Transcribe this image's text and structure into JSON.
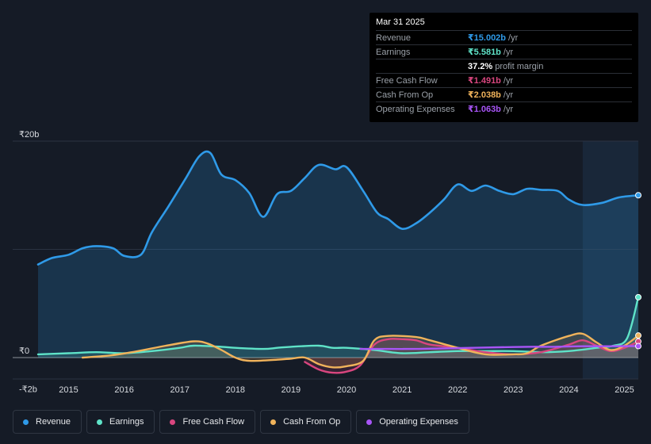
{
  "tooltip": {
    "date": "Mar 31 2025",
    "rows": [
      {
        "label": "Revenue",
        "value": "₹15.002b",
        "unit": "/yr",
        "color": "#2f9ae8"
      },
      {
        "label": "Earnings",
        "value": "₹5.581b",
        "unit": "/yr",
        "color": "#5fe3c8"
      },
      {
        "label": "",
        "value": "37.2%",
        "unit": "profit margin",
        "color": "#ffffff"
      },
      {
        "label": "Free Cash Flow",
        "value": "₹1.491b",
        "unit": "/yr",
        "color": "#d9467f"
      },
      {
        "label": "Cash From Op",
        "value": "₹2.038b",
        "unit": "/yr",
        "color": "#f0b35b"
      },
      {
        "label": "Operating Expenses",
        "value": "₹1.063b",
        "unit": "/yr",
        "color": "#a855f7"
      }
    ]
  },
  "legend": [
    {
      "label": "Revenue",
      "color": "#2f9ae8"
    },
    {
      "label": "Earnings",
      "color": "#5fe3c8"
    },
    {
      "label": "Free Cash Flow",
      "color": "#d9467f"
    },
    {
      "label": "Cash From Op",
      "color": "#f0b35b"
    },
    {
      "label": "Operating Expenses",
      "color": "#a855f7"
    }
  ],
  "chart_data": {
    "type": "line",
    "title": "",
    "xlabel": "",
    "ylabel": "",
    "ylim": [
      -2,
      20
    ],
    "xlim": [
      2014.45,
      2025.25
    ],
    "y_ticks": [
      {
        "value": 20,
        "label": "₹20b"
      },
      {
        "value": 0,
        "label": "₹0"
      },
      {
        "value": -2,
        "label": "-₹2b"
      }
    ],
    "x_ticks": [
      {
        "value": 2015,
        "label": "2015"
      },
      {
        "value": 2016,
        "label": "2016"
      },
      {
        "value": 2017,
        "label": "2017"
      },
      {
        "value": 2018,
        "label": "2018"
      },
      {
        "value": 2019,
        "label": "2019"
      },
      {
        "value": 2020,
        "label": "2020"
      },
      {
        "value": 2021,
        "label": "2021"
      },
      {
        "value": 2022,
        "label": "2022"
      },
      {
        "value": 2023,
        "label": "2023"
      },
      {
        "value": 2024,
        "label": "2024"
      },
      {
        "value": 2025,
        "label": "2025"
      }
    ],
    "grid_values": [
      20,
      10,
      0
    ],
    "highlight_range": [
      2024.25,
      2025.25
    ],
    "series": [
      {
        "name": "Revenue",
        "color": "#2f9ae8",
        "fill": true,
        "points": [
          [
            2014.45,
            8.6
          ],
          [
            2014.7,
            9.2
          ],
          [
            2015.0,
            9.5
          ],
          [
            2015.25,
            10.1
          ],
          [
            2015.5,
            10.3
          ],
          [
            2015.8,
            10.1
          ],
          [
            2016.0,
            9.4
          ],
          [
            2016.3,
            9.5
          ],
          [
            2016.5,
            11.6
          ],
          [
            2016.8,
            14.0
          ],
          [
            2017.1,
            16.5
          ],
          [
            2017.35,
            18.6
          ],
          [
            2017.55,
            18.9
          ],
          [
            2017.75,
            16.9
          ],
          [
            2018.0,
            16.4
          ],
          [
            2018.25,
            15.2
          ],
          [
            2018.5,
            13.0
          ],
          [
            2018.75,
            15.1
          ],
          [
            2019.0,
            15.4
          ],
          [
            2019.25,
            16.6
          ],
          [
            2019.5,
            17.8
          ],
          [
            2019.8,
            17.4
          ],
          [
            2020.0,
            17.6
          ],
          [
            2020.3,
            15.4
          ],
          [
            2020.55,
            13.4
          ],
          [
            2020.75,
            12.8
          ],
          [
            2021.0,
            11.9
          ],
          [
            2021.25,
            12.4
          ],
          [
            2021.5,
            13.4
          ],
          [
            2021.75,
            14.6
          ],
          [
            2022.0,
            16.0
          ],
          [
            2022.25,
            15.4
          ],
          [
            2022.5,
            15.9
          ],
          [
            2022.75,
            15.4
          ],
          [
            2023.0,
            15.1
          ],
          [
            2023.25,
            15.6
          ],
          [
            2023.5,
            15.5
          ],
          [
            2023.8,
            15.4
          ],
          [
            2024.0,
            14.6
          ],
          [
            2024.25,
            14.1
          ],
          [
            2024.6,
            14.3
          ],
          [
            2024.9,
            14.8
          ],
          [
            2025.25,
            15.0
          ]
        ]
      },
      {
        "name": "Earnings",
        "color": "#5fe3c8",
        "fill": true,
        "points": [
          [
            2014.45,
            0.3
          ],
          [
            2015.0,
            0.4
          ],
          [
            2015.5,
            0.5
          ],
          [
            2016.0,
            0.4
          ],
          [
            2016.5,
            0.6
          ],
          [
            2017.0,
            0.9
          ],
          [
            2017.25,
            1.1
          ],
          [
            2017.75,
            1.0
          ],
          [
            2018.0,
            0.9
          ],
          [
            2018.5,
            0.8
          ],
          [
            2018.75,
            0.9
          ],
          [
            2019.0,
            1.0
          ],
          [
            2019.5,
            1.1
          ],
          [
            2019.75,
            0.9
          ],
          [
            2020.0,
            0.9
          ],
          [
            2020.5,
            0.7
          ],
          [
            2021.0,
            0.4
          ],
          [
            2021.5,
            0.5
          ],
          [
            2022.0,
            0.6
          ],
          [
            2022.5,
            0.6
          ],
          [
            2023.0,
            0.6
          ],
          [
            2023.5,
            0.5
          ],
          [
            2024.0,
            0.6
          ],
          [
            2024.5,
            0.9
          ],
          [
            2024.8,
            1.1
          ],
          [
            2025.05,
            1.8
          ],
          [
            2025.25,
            5.58
          ]
        ]
      },
      {
        "name": "Free Cash Flow",
        "color": "#d9467f",
        "fill": true,
        "points": [
          [
            2019.25,
            -0.4
          ],
          [
            2019.5,
            -1.1
          ],
          [
            2019.75,
            -1.4
          ],
          [
            2020.0,
            -1.3
          ],
          [
            2020.25,
            -0.7
          ],
          [
            2020.5,
            1.2
          ],
          [
            2020.75,
            1.7
          ],
          [
            2021.0,
            1.7
          ],
          [
            2021.25,
            1.6
          ],
          [
            2021.5,
            1.2
          ],
          [
            2022.0,
            0.9
          ],
          [
            2022.5,
            0.5
          ],
          [
            2023.0,
            0.3
          ],
          [
            2023.5,
            0.5
          ],
          [
            2024.0,
            1.2
          ],
          [
            2024.25,
            1.6
          ],
          [
            2024.5,
            1.1
          ],
          [
            2024.75,
            0.6
          ],
          [
            2025.0,
            0.9
          ],
          [
            2025.25,
            1.49
          ]
        ]
      },
      {
        "name": "Cash From Op",
        "color": "#f0b35b",
        "fill": true,
        "points": [
          [
            2015.25,
            0.0
          ],
          [
            2015.75,
            0.2
          ],
          [
            2016.25,
            0.6
          ],
          [
            2016.75,
            1.1
          ],
          [
            2017.25,
            1.5
          ],
          [
            2017.5,
            1.3
          ],
          [
            2017.75,
            0.7
          ],
          [
            2018.0,
            0.0
          ],
          [
            2018.25,
            -0.3
          ],
          [
            2018.75,
            -0.2
          ],
          [
            2019.0,
            -0.1
          ],
          [
            2019.25,
            0.0
          ],
          [
            2019.5,
            -0.6
          ],
          [
            2019.75,
            -0.9
          ],
          [
            2020.0,
            -0.8
          ],
          [
            2020.3,
            -0.3
          ],
          [
            2020.5,
            1.6
          ],
          [
            2020.75,
            2.0
          ],
          [
            2021.25,
            1.9
          ],
          [
            2021.5,
            1.6
          ],
          [
            2022.0,
            0.9
          ],
          [
            2022.5,
            0.3
          ],
          [
            2023.0,
            0.3
          ],
          [
            2023.25,
            0.4
          ],
          [
            2023.5,
            1.1
          ],
          [
            2024.0,
            2.0
          ],
          [
            2024.25,
            2.2
          ],
          [
            2024.5,
            1.4
          ],
          [
            2024.75,
            0.7
          ],
          [
            2025.0,
            1.1
          ],
          [
            2025.25,
            2.04
          ]
        ]
      },
      {
        "name": "Operating Expenses",
        "color": "#a855f7",
        "fill": false,
        "points": [
          [
            2020.25,
            0.8
          ],
          [
            2020.75,
            0.8
          ],
          [
            2021.25,
            0.8
          ],
          [
            2021.75,
            0.85
          ],
          [
            2022.25,
            0.9
          ],
          [
            2022.75,
            0.95
          ],
          [
            2023.25,
            1.0
          ],
          [
            2023.75,
            1.0
          ],
          [
            2024.25,
            1.05
          ],
          [
            2024.75,
            1.05
          ],
          [
            2025.25,
            1.06
          ]
        ]
      }
    ]
  }
}
